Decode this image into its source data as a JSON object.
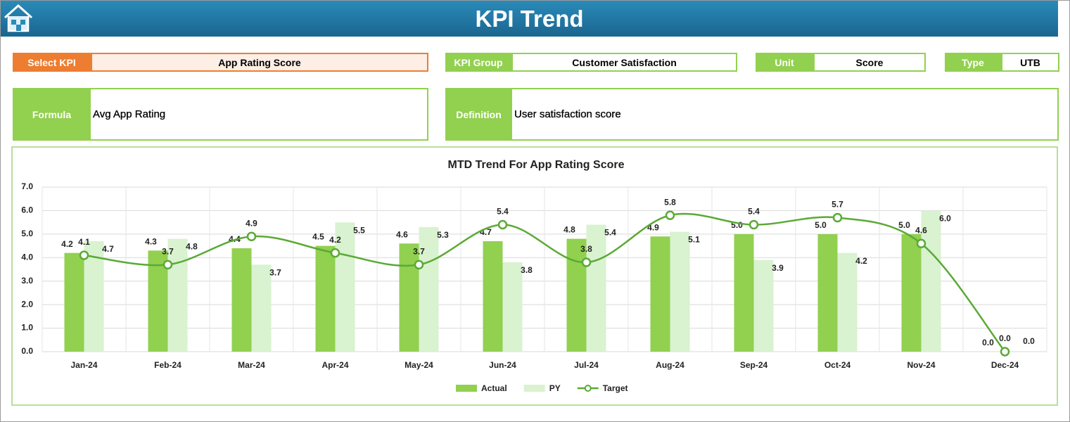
{
  "header": {
    "title": "KPI Trend"
  },
  "fields": {
    "select_kpi": {
      "label": "Select KPI",
      "value": "App Rating Score"
    },
    "kpi_group": {
      "label": "KPI Group",
      "value": "Customer Satisfaction"
    },
    "unit": {
      "label": "Unit",
      "value": "Score"
    },
    "type": {
      "label": "Type",
      "value": "UTB"
    },
    "formula": {
      "label": "Formula",
      "value": "Avg App Rating"
    },
    "definition": {
      "label": "Definition",
      "value": "User satisfaction score"
    }
  },
  "chart_data": {
    "type": "bar-line",
    "title": "MTD Trend For App Rating Score",
    "categories": [
      "Jan-24",
      "Feb-24",
      "Mar-24",
      "Apr-24",
      "May-24",
      "Jun-24",
      "Jul-24",
      "Aug-24",
      "Sep-24",
      "Oct-24",
      "Nov-24",
      "Dec-24"
    ],
    "series": [
      {
        "name": "Actual",
        "kind": "bar",
        "color": "#92d050",
        "values": [
          4.2,
          4.3,
          4.4,
          4.5,
          4.6,
          4.7,
          4.8,
          4.9,
          5.0,
          5.0,
          5.0,
          0.0
        ],
        "value_labels": [
          "4.2",
          "4.3",
          "4.4",
          "4.5",
          "4.6",
          "4.7",
          "4.8",
          "4.9",
          "5.0",
          "5.0",
          "5.0",
          "0.0"
        ]
      },
      {
        "name": "PY",
        "kind": "bar",
        "color": "#d9f2d0",
        "values": [
          4.7,
          4.8,
          3.7,
          5.5,
          5.3,
          3.8,
          5.4,
          5.1,
          3.9,
          4.2,
          6.0,
          0.0
        ],
        "value_labels": [
          "4.7",
          "4.8",
          "3.7",
          "5.5",
          "5.3",
          "3.8",
          "5.4",
          "5.1",
          "3.9",
          "4.2",
          "6.0",
          "0.0"
        ]
      },
      {
        "name": "Target",
        "kind": "line",
        "color": "#5aaa35",
        "values": [
          4.1,
          3.7,
          4.9,
          4.2,
          3.7,
          5.4,
          3.8,
          5.8,
          5.4,
          5.7,
          4.6,
          0.0
        ],
        "value_labels": [
          "4.1",
          "3.7",
          "4.9",
          "4.2",
          "3.7",
          "5.4",
          "3.8",
          "5.8",
          "5.4",
          "5.7",
          "4.6",
          "0.0"
        ]
      }
    ],
    "ylim": [
      0,
      7
    ],
    "yticks": [
      {
        "value": 0,
        "label": "0.0"
      },
      {
        "value": 1,
        "label": "1.0"
      },
      {
        "value": 2,
        "label": "2.0"
      },
      {
        "value": 3,
        "label": "3.0"
      },
      {
        "value": 4,
        "label": "4.0"
      },
      {
        "value": 5,
        "label": "5.0"
      },
      {
        "value": 6,
        "label": "6.0"
      },
      {
        "value": 7,
        "label": "7.0"
      }
    ],
    "grid": true,
    "legend": "bottom"
  }
}
